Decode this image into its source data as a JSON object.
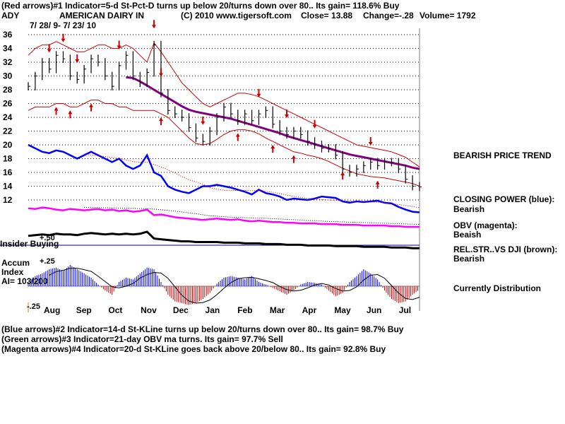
{
  "header": {
    "line1": "(Red arrows)#1 Indicator=5-d St-Pct-D turns up below 20/turns down over 80.. Its gain= 118.6% Buy",
    "ticker": "ADY",
    "company": "AMERICAN DAIRY IN",
    "copyright": "(C) 2010 www.tigersoft.com",
    "close": "Close= 13.88",
    "change": "Change=-.28",
    "volume": "Volume= 1792",
    "date_range": "7/ 28/ 9- 7/ 23/ 10"
  },
  "right_panel": {
    "trend": "BEARISH PRICE TREND",
    "cp_label": "CLOSING POWER (blue):",
    "cp_value": "Bearish",
    "obv_label": "OBV (magenta):",
    "obv_value": "Beaish",
    "rs_label": "REL.STR..VS DJI (brown):",
    "rs_value": "Bearish",
    "distribution": "Currently Distribution"
  },
  "left_labels": {
    "insider": "Insider Buying",
    "plus50": "+.50",
    "accum1": "Accum",
    "accum2": "Index",
    "accum3": "AI= 103/200",
    "plus25": "+.25",
    "minus25": "-.25"
  },
  "footer": {
    "line1": "(Blue arrows)#2 Indicator=14-d St-KLine turns up below 20/turns down over 80.. Its gain= 98.7% Buy",
    "line2": "(Green arrows)#3 Indicator=21-day OBV ma turns. Its gain= 97.7% Sell",
    "line3": "(Magenta arrows)#4 Indicator=20-d St-KLine goes back above 20/below 80.. Its gain= 92.8% Buy"
  },
  "colors": {
    "price": "#000000",
    "band": "#cc0000",
    "ma": "#800080",
    "closing_power": "#0000ff",
    "obv": "#ff00ff",
    "rel_str": "#000000",
    "accum_pos": "#0000ff",
    "accum_neg": "#cc0000",
    "grid": "#000000",
    "axis": "#7f7f7f"
  },
  "chart_data": {
    "type": "line",
    "y_ticks": [
      36,
      34,
      32,
      30,
      28,
      26,
      24,
      22,
      20,
      18,
      16,
      14,
      12
    ],
    "ylim": [
      12,
      36
    ],
    "x_months": [
      "Aug",
      "Sep",
      "Oct",
      "Nov",
      "Dec",
      "Jan",
      "Feb",
      "Mar",
      "Apr",
      "May",
      "Jun",
      "Jul"
    ],
    "price_close": [
      28.5,
      30,
      32,
      31,
      33,
      32.5,
      30,
      29.5,
      31,
      32.5,
      32,
      30,
      28.5,
      31.5,
      33,
      30,
      29,
      30.5,
      34.5,
      27.5,
      25,
      24.5,
      24,
      22.5,
      21,
      20.5,
      22,
      24,
      25.5,
      24.5,
      23.5,
      24.5,
      23.5,
      24.5,
      25,
      23,
      22,
      21.5,
      22,
      21.5,
      20.5,
      20,
      19.5,
      19.5,
      18.5,
      16.5,
      16,
      16.5,
      17,
      17.5,
      17,
      17.5,
      17.5,
      16.5,
      15,
      14,
      13.9
    ],
    "ma_long": [
      null,
      null,
      null,
      null,
      null,
      null,
      null,
      null,
      null,
      null,
      null,
      null,
      null,
      null,
      29.8,
      29.7,
      29.2,
      28.6,
      28,
      27.4,
      26.8,
      26.2,
      25.6,
      25.1,
      24.8,
      24.6,
      24.4,
      24.2,
      24,
      23.8,
      23.5,
      23.2,
      22.9,
      22.6,
      22.3,
      22,
      21.7,
      21.3,
      21,
      20.7,
      20.4,
      20.1,
      19.8,
      19.5,
      19.2,
      18.9,
      18.6,
      18.4,
      18.2,
      18,
      17.8,
      17.6,
      17.4,
      17.2,
      17,
      16.7,
      16.5
    ],
    "band_upper": [
      33,
      34,
      34.5,
      34.5,
      35,
      34.5,
      34,
      33.5,
      33.5,
      34,
      34.5,
      34.5,
      34,
      34,
      34.5,
      34,
      33,
      32,
      34.8,
      33.5,
      32,
      30.5,
      29,
      28,
      27,
      26,
      25.5,
      26,
      26.5,
      27,
      27.5,
      27.5,
      27.3,
      27,
      26.5,
      26,
      25.5,
      25,
      24.5,
      24,
      23.5,
      23,
      22.5,
      22,
      21.5,
      21,
      20.5,
      20,
      19.8,
      19.6,
      19.4,
      19.2,
      19,
      18.6,
      18.2,
      17.5,
      16.8
    ],
    "band_lower": [
      25,
      25.5,
      25.5,
      25.5,
      26,
      26,
      25.5,
      25.5,
      26,
      26.5,
      26.5,
      26,
      26,
      25.5,
      25.5,
      25,
      25,
      25,
      25,
      24.5,
      24,
      23,
      22,
      21,
      20.2,
      20,
      20.2,
      20.8,
      21.5,
      22,
      22.2,
      22.2,
      22,
      21.6,
      21,
      20.5,
      20,
      19.5,
      19,
      18.8,
      18.5,
      18.3,
      18,
      17.6,
      17.1,
      16.6,
      16.2,
      15.8,
      15.6,
      15.4,
      15.3,
      15.2,
      15,
      14.8,
      14.6,
      14.4,
      14
    ],
    "closing_power": [
      20,
      19.5,
      19,
      18.8,
      19.2,
      19,
      18.5,
      18,
      18.5,
      19,
      18.5,
      18,
      17.5,
      18,
      17,
      16.5,
      17,
      18.5,
      16,
      15.5,
      14,
      13.5,
      13.2,
      13,
      13.5,
      14,
      14,
      14.2,
      14,
      13.8,
      13.5,
      13.2,
      12.8,
      13.5,
      13,
      12.8,
      12.5,
      12,
      12.2,
      12.1,
      12,
      12.2,
      12.5,
      12.4,
      12.3,
      11.8,
      11.6,
      11.8,
      11.7,
      11.8,
      11.9,
      11.6,
      11.5,
      11,
      10.6,
      10.3,
      10.2
    ],
    "obv": [
      10.8,
      10.7,
      10.9,
      10.8,
      10.6,
      10.5,
      10.7,
      10.6,
      10.5,
      10.6,
      10.7,
      10.5,
      10.6,
      10.4,
      10.5,
      10.3,
      10.4,
      10.6,
      9.8,
      9.9,
      9.7,
      9.5,
      9.4,
      9.3,
      9.2,
      9.1,
      9.2,
      9.3,
      9.2,
      9.1,
      9.2,
      9.0,
      8.9,
      9.0,
      8.9,
      8.8,
      8.8,
      8.7,
      8.7,
      8.6,
      8.6,
      8.6,
      8.5,
      8.5,
      8.5,
      8.4,
      8.4,
      8.4,
      8.3,
      8.3,
      8.3,
      8.3,
      8.2,
      8.2,
      8.1,
      8.1,
      8.1
    ],
    "rel_str": [
      6.8,
      6.9,
      7.0,
      6.9,
      7.1,
      7.0,
      7.0,
      6.9,
      7.1,
      7.2,
      7.1,
      7.0,
      7.1,
      7.0,
      7.1,
      7.0,
      7.1,
      7.4,
      6.4,
      6.3,
      6.2,
      6.1,
      6.0,
      6.0,
      5.9,
      5.9,
      5.9,
      5.9,
      5.8,
      5.8,
      5.8,
      5.7,
      5.7,
      5.7,
      5.6,
      5.6,
      5.6,
      5.5,
      5.5,
      5.5,
      5.4,
      5.4,
      5.4,
      5.4,
      5.3,
      5.3,
      5.3,
      5.3,
      5.2,
      5.2,
      5.2,
      5.2,
      5.1,
      5.1,
      5.1,
      5.0,
      5.0
    ],
    "accum_index": [
      0.05,
      0.12,
      0.15,
      0.2,
      0.22,
      0.18,
      0.25,
      0.2,
      0.15,
      0.1,
      0.02,
      -0.05,
      -0.1,
      0.05,
      0.1,
      0.08,
      0.15,
      0.22,
      0.2,
      0.05,
      -0.1,
      -0.18,
      -0.2,
      -0.22,
      -0.2,
      -0.15,
      -0.08,
      0.03,
      0.1,
      0.12,
      0.1,
      0.08,
      0.12,
      0.05,
      0.02,
      -0.02,
      -0.06,
      -0.1,
      -0.05,
      0.02,
      0.05,
      0.04,
      0.02,
      -0.05,
      -0.12,
      -0.08,
      0.05,
      0.12,
      0.2,
      0.15,
      0.08,
      -0.05,
      -0.15,
      -0.2,
      -0.18,
      -0.1,
      -0.04
    ],
    "buy_arrows_idx": [
      4,
      6,
      9,
      19,
      30,
      35,
      38,
      45,
      50
    ],
    "sell_arrows_idx": [
      3,
      5,
      7,
      13,
      18,
      19,
      25,
      33,
      37,
      41,
      49
    ]
  }
}
